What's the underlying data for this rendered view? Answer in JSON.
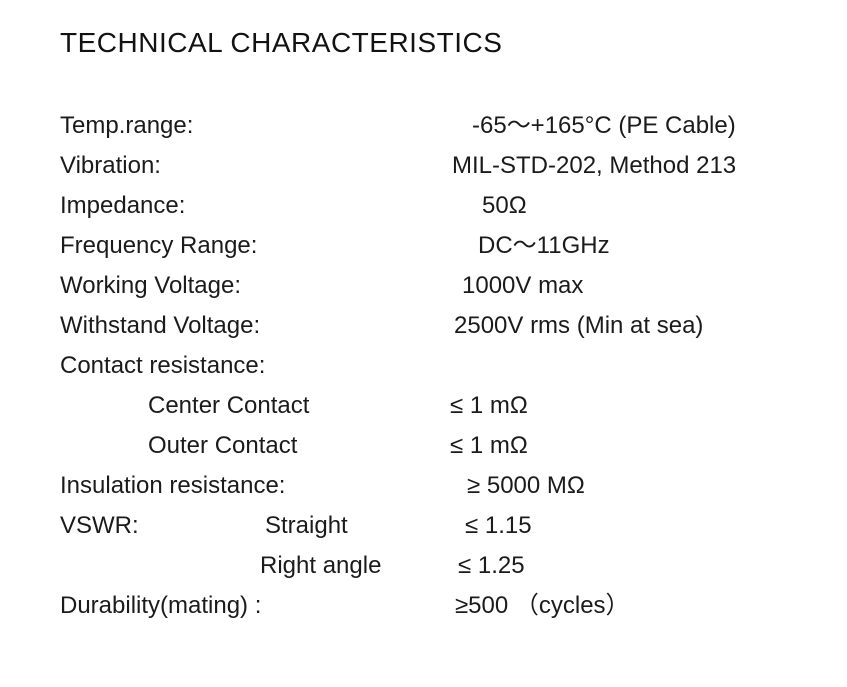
{
  "page": {
    "title": "TECHNICAL CHARACTERISTICS"
  },
  "specs": [
    {
      "label": "Temp.range:",
      "sublabel": "",
      "value": "-65～+165°C (PE Cable)"
    },
    {
      "label": "Vibration:",
      "sublabel": "",
      "value": "MIL-STD-202, Method 213"
    },
    {
      "label": "Impedance:",
      "sublabel": "",
      "value": "50Ω"
    },
    {
      "label": "Frequency Range:",
      "sublabel": "",
      "value": "DC～11GHz"
    },
    {
      "label": "Working Voltage:",
      "sublabel": "",
      "value": "1000V max"
    },
    {
      "label": "Withstand Voltage:",
      "sublabel": "",
      "value": "2500V rms (Min at sea)"
    },
    {
      "label": "Contact resistance:",
      "sublabel": "",
      "value": ""
    },
    {
      "label": "Center Contact",
      "sublabel": "",
      "value": "≤ 1 mΩ"
    },
    {
      "label": "Outer Contact",
      "sublabel": "",
      "value": "≤ 1 mΩ"
    },
    {
      "label": "Insulation resistance:",
      "sublabel": "",
      "value": "≥ 5000 MΩ"
    },
    {
      "label": "VSWR:",
      "sublabel": "Straight",
      "value": "≤ 1.15"
    },
    {
      "label": "",
      "sublabel": "Right angle",
      "value": "≤ 1.25"
    },
    {
      "label": "Durability(mating) :",
      "sublabel": "",
      "value": "≥500 （cycles）"
    }
  ]
}
